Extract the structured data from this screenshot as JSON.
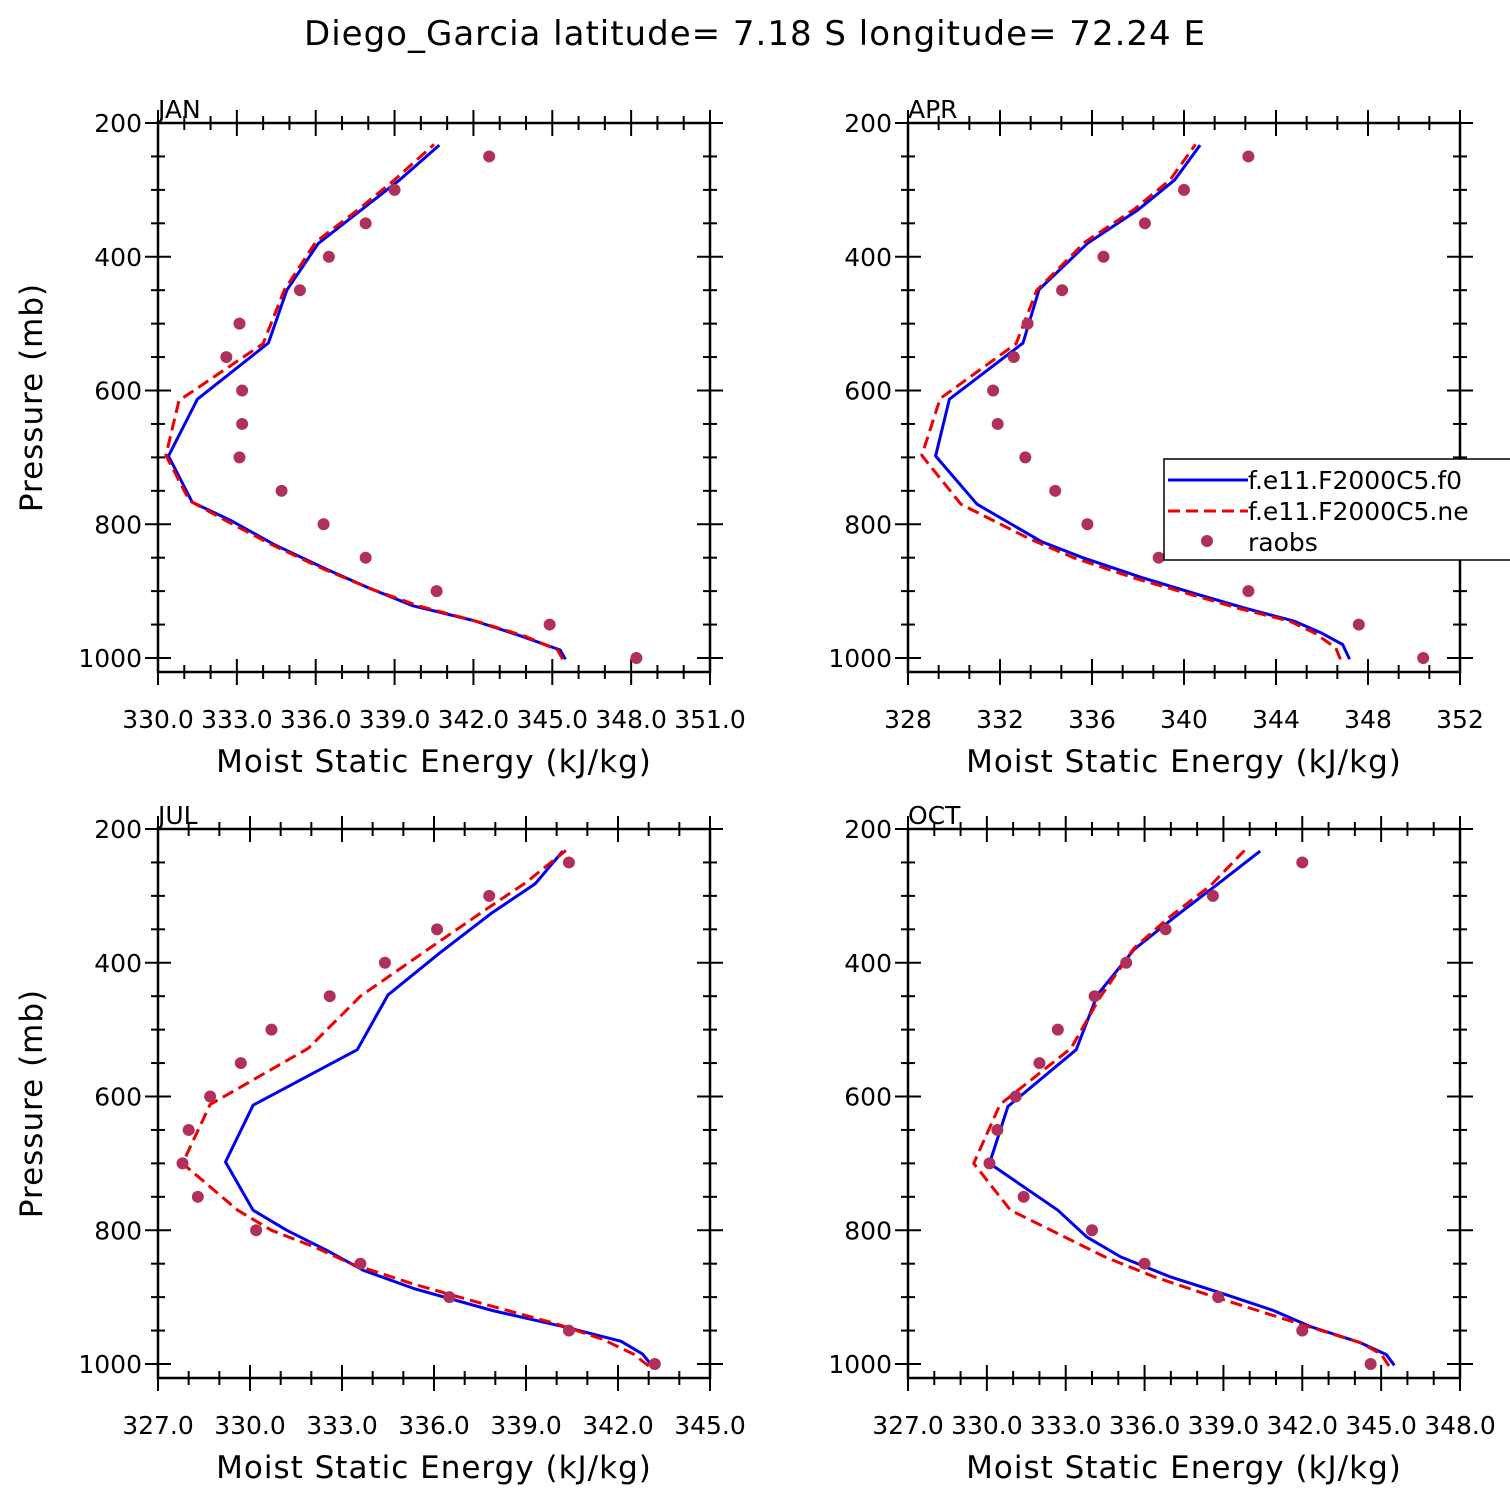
{
  "title": "Diego_Garcia  latitude= 7.18 S longitude= 72.24 E",
  "chart_data": [
    {
      "type": "line",
      "panel": "JAN",
      "xlabel": "Moist Static Energy (kJ/kg)",
      "ylabel": "Pressure (mb)",
      "xlim": [
        330.0,
        351.0
      ],
      "ylim": [
        200,
        1000
      ],
      "xtick_values": [
        330.0,
        333.0,
        336.0,
        339.0,
        342.0,
        345.0,
        348.0,
        351.0
      ],
      "xtick_labels": [
        "330.0",
        "333.0",
        "336.0",
        "339.0",
        "342.0",
        "345.0",
        "348.0",
        "351.0"
      ],
      "ytick_values": [
        200,
        400,
        600,
        800,
        1000
      ],
      "ytick_labels": [
        "200",
        "400",
        "600",
        "800",
        "1000"
      ],
      "series": [
        {
          "name": "f.e11.F2000C5.f0",
          "style": "solid",
          "color": "#0000ee",
          "points": [
            [
              345.5,
              1002
            ],
            [
              345.3,
              988
            ],
            [
              343.8,
              967
            ],
            [
              342.0,
              944
            ],
            [
              339.7,
              922
            ],
            [
              338.0,
              895
            ],
            [
              336.4,
              867
            ],
            [
              334.4,
              830
            ],
            [
              332.8,
              795
            ],
            [
              331.3,
              767
            ],
            [
              330.4,
              698
            ],
            [
              331.5,
              613
            ],
            [
              334.2,
              529
            ],
            [
              334.9,
              450
            ],
            [
              336.1,
              380
            ],
            [
              337.8,
              328
            ],
            [
              339.2,
              285
            ],
            [
              340.7,
              233
            ]
          ]
        },
        {
          "name": "f.e11.F2000C5.ne",
          "style": "dashed",
          "color": "#ee0000",
          "points": [
            [
              345.4,
              1002
            ],
            [
              345.2,
              988
            ],
            [
              344.0,
              968
            ],
            [
              342.2,
              946
            ],
            [
              339.9,
              922
            ],
            [
              338.2,
              898
            ],
            [
              336.3,
              867
            ],
            [
              334.3,
              830
            ],
            [
              332.6,
              795
            ],
            [
              331.2,
              765
            ],
            [
              330.3,
              697
            ],
            [
              330.8,
              615
            ],
            [
              334.0,
              530
            ],
            [
              334.8,
              450
            ],
            [
              336.0,
              378
            ],
            [
              337.6,
              330
            ],
            [
              339.0,
              285
            ],
            [
              340.5,
              232
            ]
          ]
        },
        {
          "name": "raobs",
          "style": "markers",
          "color": "#b0305c",
          "points": [
            [
              348.2,
              1000
            ],
            [
              344.9,
              950
            ],
            [
              340.6,
              900
            ],
            [
              337.9,
              850
            ],
            [
              336.3,
              800
            ],
            [
              334.7,
              750
            ],
            [
              333.1,
              700
            ],
            [
              333.2,
              650
            ],
            [
              333.2,
              600
            ],
            [
              332.6,
              550
            ],
            [
              333.1,
              500
            ],
            [
              335.4,
              450
            ],
            [
              336.5,
              400
            ],
            [
              337.9,
              350
            ],
            [
              339.0,
              300
            ],
            [
              342.6,
              250
            ]
          ]
        }
      ]
    },
    {
      "type": "line",
      "panel": "APR",
      "xlabel": "Moist Static Energy (kJ/kg)",
      "ylabel": "",
      "xlim": [
        328,
        352
      ],
      "ylim": [
        200,
        1000
      ],
      "xtick_values": [
        328,
        332,
        336,
        340,
        344,
        348,
        352
      ],
      "xtick_labels": [
        "328",
        "332",
        "336",
        "340",
        "344",
        "348",
        "352"
      ],
      "ytick_values": [
        200,
        400,
        600,
        800,
        1000
      ],
      "ytick_labels": [
        "200",
        "400",
        "600",
        "800",
        "1000"
      ],
      "series": [
        {
          "name": "f.e11.F2000C5.f0",
          "style": "solid",
          "color": "#0000ee",
          "points": [
            [
              347.2,
              1002
            ],
            [
              346.9,
              980
            ],
            [
              346.0,
              963
            ],
            [
              344.8,
              945
            ],
            [
              342.7,
              926
            ],
            [
              340.6,
              905
            ],
            [
              338.2,
              880
            ],
            [
              335.6,
              850
            ],
            [
              333.8,
              826
            ],
            [
              331.0,
              770
            ],
            [
              329.2,
              698
            ],
            [
              329.8,
              613
            ],
            [
              333.0,
              529
            ],
            [
              333.7,
              449
            ],
            [
              335.8,
              380
            ],
            [
              338.0,
              330
            ],
            [
              339.6,
              285
            ],
            [
              340.7,
              233
            ]
          ]
        },
        {
          "name": "f.e11.F2000C5.ne",
          "style": "dashed",
          "color": "#ee0000",
          "points": [
            [
              346.8,
              1002
            ],
            [
              346.6,
              985
            ],
            [
              345.7,
              963
            ],
            [
              344.6,
              945
            ],
            [
              342.4,
              926
            ],
            [
              340.3,
              905
            ],
            [
              337.8,
              880
            ],
            [
              335.2,
              850
            ],
            [
              333.3,
              822
            ],
            [
              330.3,
              770
            ],
            [
              328.6,
              697
            ],
            [
              329.4,
              612
            ],
            [
              332.7,
              530
            ],
            [
              333.6,
              450
            ],
            [
              335.7,
              378
            ],
            [
              337.8,
              330
            ],
            [
              339.4,
              285
            ],
            [
              340.5,
              232
            ]
          ]
        },
        {
          "name": "raobs",
          "style": "markers",
          "color": "#b0305c",
          "points": [
            [
              350.4,
              1000
            ],
            [
              347.6,
              950
            ],
            [
              342.8,
              900
            ],
            [
              338.9,
              850
            ],
            [
              335.8,
              800
            ],
            [
              334.4,
              750
            ],
            [
              333.1,
              700
            ],
            [
              331.9,
              650
            ],
            [
              331.7,
              600
            ],
            [
              332.6,
              550
            ],
            [
              333.2,
              500
            ],
            [
              334.7,
              450
            ],
            [
              336.5,
              400
            ],
            [
              338.3,
              350
            ],
            [
              340.0,
              300
            ],
            [
              342.8,
              250
            ]
          ]
        }
      ]
    },
    {
      "type": "line",
      "panel": "JUL",
      "xlabel": "Moist Static Energy (kJ/kg)",
      "ylabel": "Pressure (mb)",
      "xlim": [
        327.0,
        345.0
      ],
      "ylim": [
        200,
        1000
      ],
      "xtick_values": [
        327.0,
        330.0,
        333.0,
        336.0,
        339.0,
        342.0,
        345.0
      ],
      "xtick_labels": [
        "327.0",
        "330.0",
        "333.0",
        "336.0",
        "339.0",
        "342.0",
        "345.0"
      ],
      "ytick_values": [
        200,
        400,
        600,
        800,
        1000
      ],
      "ytick_labels": [
        "200",
        "400",
        "600",
        "800",
        "1000"
      ],
      "series": [
        {
          "name": "f.e11.F2000C5.f0",
          "style": "solid",
          "color": "#0000ee",
          "points": [
            [
              343.1,
              1002
            ],
            [
              342.8,
              985
            ],
            [
              342.1,
              966
            ],
            [
              340.3,
              945
            ],
            [
              337.9,
              920
            ],
            [
              335.4,
              888
            ],
            [
              333.7,
              860
            ],
            [
              332.5,
              830
            ],
            [
              331.2,
              800
            ],
            [
              330.1,
              770
            ],
            [
              329.2,
              698
            ],
            [
              330.1,
              613
            ],
            [
              333.5,
              530
            ],
            [
              334.5,
              448
            ],
            [
              336.2,
              385
            ],
            [
              337.9,
              325
            ],
            [
              339.3,
              282
            ],
            [
              340.2,
              233
            ]
          ]
        },
        {
          "name": "f.e11.F2000C5.ne",
          "style": "dashed",
          "color": "#ee0000",
          "points": [
            [
              343.0,
              1003
            ],
            [
              342.5,
              985
            ],
            [
              341.5,
              963
            ],
            [
              340.0,
              940
            ],
            [
              337.6,
              910
            ],
            [
              335.3,
              880
            ],
            [
              333.3,
              850
            ],
            [
              332.1,
              825
            ],
            [
              330.7,
              800
            ],
            [
              329.6,
              770
            ],
            [
              327.8,
              700
            ],
            [
              328.7,
              612
            ],
            [
              331.9,
              528
            ],
            [
              333.6,
              450
            ],
            [
              335.8,
              380
            ],
            [
              337.7,
              320
            ],
            [
              339.0,
              280
            ],
            [
              340.3,
              232
            ]
          ]
        },
        {
          "name": "raobs",
          "style": "markers",
          "color": "#b0305c",
          "points": [
            [
              343.2,
              1000
            ],
            [
              340.4,
              950
            ],
            [
              336.5,
              900
            ],
            [
              333.6,
              850
            ],
            [
              330.2,
              800
            ],
            [
              328.3,
              750
            ],
            [
              327.8,
              700
            ],
            [
              328.0,
              650
            ],
            [
              328.7,
              600
            ],
            [
              329.7,
              550
            ],
            [
              330.7,
              500
            ],
            [
              332.6,
              450
            ],
            [
              334.4,
              400
            ],
            [
              336.1,
              350
            ],
            [
              337.8,
              300
            ],
            [
              340.4,
              250
            ]
          ]
        }
      ]
    },
    {
      "type": "line",
      "panel": "OCT",
      "xlabel": "Moist Static Energy (kJ/kg)",
      "ylabel": "",
      "xlim": [
        327.0,
        348.0
      ],
      "ylim": [
        200,
        1000
      ],
      "xtick_values": [
        327.0,
        330.0,
        333.0,
        336.0,
        339.0,
        342.0,
        345.0,
        348.0
      ],
      "xtick_labels": [
        "327.0",
        "330.0",
        "333.0",
        "336.0",
        "339.0",
        "342.0",
        "345.0",
        "348.0"
      ],
      "ytick_values": [
        200,
        400,
        600,
        800,
        1000
      ],
      "ytick_labels": [
        "200",
        "400",
        "600",
        "800",
        "1000"
      ],
      "series": [
        {
          "name": "f.e11.F2000C5.f0",
          "style": "solid",
          "color": "#0000ee",
          "points": [
            [
              345.5,
              1002
            ],
            [
              345.2,
              986
            ],
            [
              344.2,
              968
            ],
            [
              342.3,
              944
            ],
            [
              340.9,
              920
            ],
            [
              339.0,
              895
            ],
            [
              337.0,
              870
            ],
            [
              335.1,
              840
            ],
            [
              333.8,
              810
            ],
            [
              332.7,
              770
            ],
            [
              330.1,
              700
            ],
            [
              330.8,
              615
            ],
            [
              333.4,
              530
            ],
            [
              334.2,
              448
            ],
            [
              335.6,
              380
            ],
            [
              337.2,
              330
            ],
            [
              338.7,
              285
            ],
            [
              340.4,
              233
            ]
          ]
        },
        {
          "name": "f.e11.F2000C5.ne",
          "style": "dashed",
          "color": "#ee0000",
          "points": [
            [
              345.3,
              1003
            ],
            [
              345.0,
              985
            ],
            [
              344.2,
              968
            ],
            [
              341.9,
              940
            ],
            [
              340.3,
              920
            ],
            [
              338.3,
              895
            ],
            [
              336.4,
              870
            ],
            [
              334.5,
              840
            ],
            [
              332.7,
              805
            ],
            [
              330.9,
              770
            ],
            [
              329.5,
              700
            ],
            [
              330.5,
              612
            ],
            [
              333.2,
              528
            ],
            [
              334.3,
              452
            ],
            [
              335.6,
              378
            ],
            [
              337.0,
              330
            ],
            [
              338.5,
              285
            ],
            [
              339.8,
              232
            ]
          ]
        },
        {
          "name": "raobs",
          "style": "markers",
          "color": "#b0305c",
          "points": [
            [
              344.6,
              1000
            ],
            [
              342.0,
              950
            ],
            [
              338.8,
              900
            ],
            [
              336.0,
              850
            ],
            [
              334.0,
              800
            ],
            [
              331.4,
              750
            ],
            [
              330.1,
              700
            ],
            [
              330.4,
              650
            ],
            [
              331.1,
              600
            ],
            [
              332.0,
              550
            ],
            [
              332.7,
              500
            ],
            [
              334.1,
              450
            ],
            [
              335.3,
              400
            ],
            [
              336.8,
              350
            ],
            [
              338.6,
              300
            ],
            [
              342.0,
              250
            ]
          ]
        }
      ]
    }
  ],
  "legend": {
    "panel": "APR",
    "placement": "right, mid-height (clipped)",
    "entries": [
      {
        "label": "f.e11.F2000C5.f0",
        "style": "solid",
        "color": "#0000ee"
      },
      {
        "label": "f.e11.F2000C5.ne",
        "style": "dashed",
        "color": "#ee0000"
      },
      {
        "label": "raobs",
        "style": "markers",
        "color": "#b0305c"
      }
    ]
  }
}
